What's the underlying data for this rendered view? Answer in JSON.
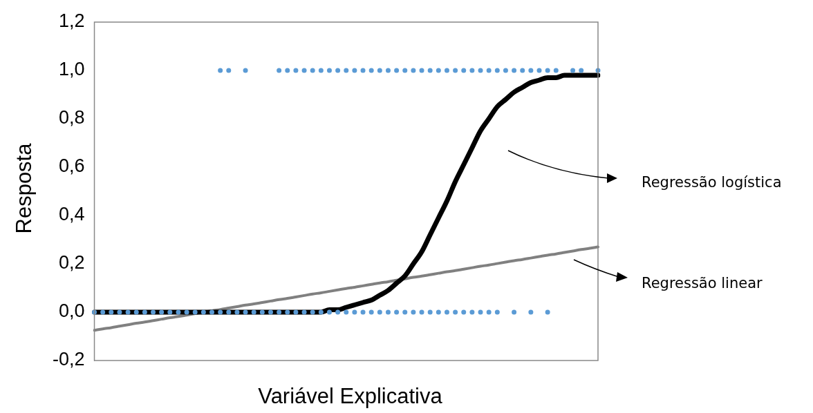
{
  "chart_data": {
    "type": "scatter",
    "xlabel": "Variável Explicativa",
    "ylabel": "Resposta",
    "categories": [
      null,
      null,
      null,
      null,
      null,
      null,
      null,
      null,
      null,
      null,
      null,
      null,
      null,
      null,
      null,
      null,
      null,
      null,
      null,
      null,
      null,
      null,
      null,
      null,
      null,
      null,
      null,
      null,
      null,
      null,
      null,
      null,
      null,
      null,
      null,
      null,
      null,
      null,
      null,
      null,
      null,
      null,
      null,
      null,
      null,
      null,
      null,
      null,
      null,
      null,
      null,
      null,
      null,
      null,
      null,
      null,
      null,
      null,
      null,
      null,
      null
    ],
    "ylim": [
      -0.2,
      1.2
    ],
    "yticks": [
      {
        "value": -0.2,
        "label": "-0,2"
      },
      {
        "value": 0,
        "label": "0,0"
      },
      {
        "value": 0.2,
        "label": "0,2"
      },
      {
        "value": 0.4,
        "label": "0,4"
      },
      {
        "value": 0.6,
        "label": "0,6"
      },
      {
        "value": 0.8,
        "label": "0,8"
      },
      {
        "value": 1.0,
        "label": "1,0"
      },
      {
        "value": 1.2,
        "label": "1,2"
      }
    ],
    "grid": false,
    "legend": false,
    "tick_labels": "y",
    "marker": "circle",
    "series": [
      {
        "color": "#5b9bd5",
        "values": [
          null,
          null,
          null,
          null,
          null,
          null,
          null,
          null,
          null,
          null,
          null,
          null,
          null,
          null,
          null,
          1,
          1,
          null,
          1,
          null,
          null,
          null,
          1,
          1,
          1,
          1,
          1,
          1,
          1,
          1,
          1,
          1,
          1,
          1,
          1,
          1,
          1,
          1,
          1,
          1,
          1,
          1,
          1,
          1,
          1,
          1,
          1,
          1,
          1,
          1,
          1,
          1,
          1,
          1,
          1,
          1,
          null,
          1,
          1,
          null,
          1
        ]
      },
      {
        "color": "#5b9bd5",
        "values": [
          0,
          0,
          0,
          0,
          0,
          0,
          0,
          0,
          0,
          0,
          0,
          0,
          0,
          0,
          0,
          0,
          0,
          0,
          0,
          0,
          0,
          0,
          0,
          0,
          0,
          0,
          0,
          0,
          0,
          0,
          0,
          0,
          0,
          0,
          0,
          0,
          0,
          0,
          0,
          0,
          0,
          0,
          0,
          0,
          0,
          0,
          0,
          0,
          0,
          null,
          0,
          null,
          0,
          null,
          0,
          null,
          null,
          null,
          null,
          null,
          null
        ]
      },
      {
        "type": "line",
        "color": "#000000",
        "marker": "none",
        "values": [
          0,
          0,
          0,
          0,
          0,
          0,
          0,
          0,
          0,
          0,
          0,
          0,
          0,
          0,
          0,
          0,
          0,
          0,
          0,
          0,
          0,
          0,
          0,
          0,
          0,
          0,
          0,
          0,
          0.01,
          0.01,
          0.02,
          0.03,
          0.04,
          0.05,
          0.07,
          0.09,
          0.12,
          0.15,
          0.2,
          0.25,
          0.32,
          0.39,
          0.46,
          0.54,
          0.61,
          0.68,
          0.75,
          0.8,
          0.85,
          0.88,
          0.91,
          0.93,
          0.95,
          0.96,
          0.97,
          0.97,
          0.98,
          0.98,
          0.98,
          0.98,
          0.98
        ]
      },
      {
        "type": "line",
        "color": "#808080",
        "marker": "none",
        "values": [
          -0.075,
          -0.069,
          -0.064,
          -0.058,
          -0.052,
          -0.046,
          -0.041,
          -0.035,
          -0.029,
          -0.023,
          -0.018,
          -0.012,
          -0.006,
          0.0,
          0.006,
          0.011,
          0.017,
          0.023,
          0.029,
          0.034,
          0.04,
          0.046,
          0.052,
          0.057,
          0.063,
          0.069,
          0.075,
          0.08,
          0.086,
          0.092,
          0.098,
          0.103,
          0.109,
          0.115,
          0.121,
          0.126,
          0.132,
          0.138,
          0.144,
          0.149,
          0.155,
          0.161,
          0.167,
          0.172,
          0.178,
          0.184,
          0.19,
          0.195,
          0.201,
          0.207,
          0.213,
          0.218,
          0.224,
          0.23,
          0.236,
          0.241,
          0.247,
          0.253,
          0.259,
          0.264,
          0.27
        ]
      }
    ],
    "annotations": [
      "Regressão logística",
      "Regressão linear"
    ]
  }
}
